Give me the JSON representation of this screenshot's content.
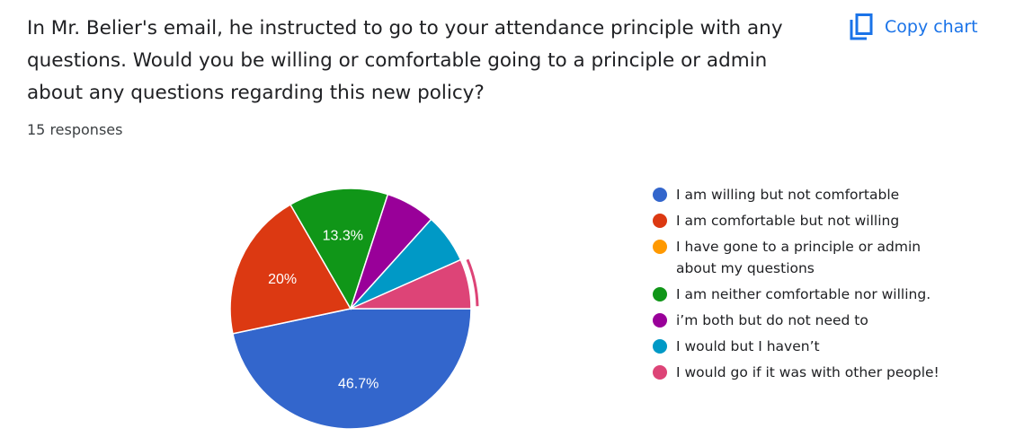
{
  "question": "In Mr. Belier's email, he instructed to go to your attendance principle with any questions. Would you be willing or comfortable going to a principle or admin about any questions regarding this new policy?",
  "responses": "15 responses",
  "copy_button": {
    "label": "Copy chart",
    "icon": "copy-icon"
  },
  "chart_data": {
    "type": "pie",
    "categories": [
      "I am willing but not comfortable",
      "I am comfortable but not willing",
      "I have gone to a principle or admin about my questions",
      "I am neither comfortable nor willing.",
      "i’m both but do not need to",
      "I would but I haven’t",
      "I would go if it was with other people!"
    ],
    "values": [
      7,
      3,
      0,
      2,
      1,
      1,
      1
    ],
    "slice_labels": [
      "46.7%",
      "20%",
      "",
      "13.3%",
      "",
      "",
      ""
    ],
    "colors": [
      "#3366cc",
      "#dc3912",
      "#ff9900",
      "#109618",
      "#990099",
      "#0099c6",
      "#dd4477"
    ],
    "highlighted_index": 6,
    "legend_position": "right"
  }
}
